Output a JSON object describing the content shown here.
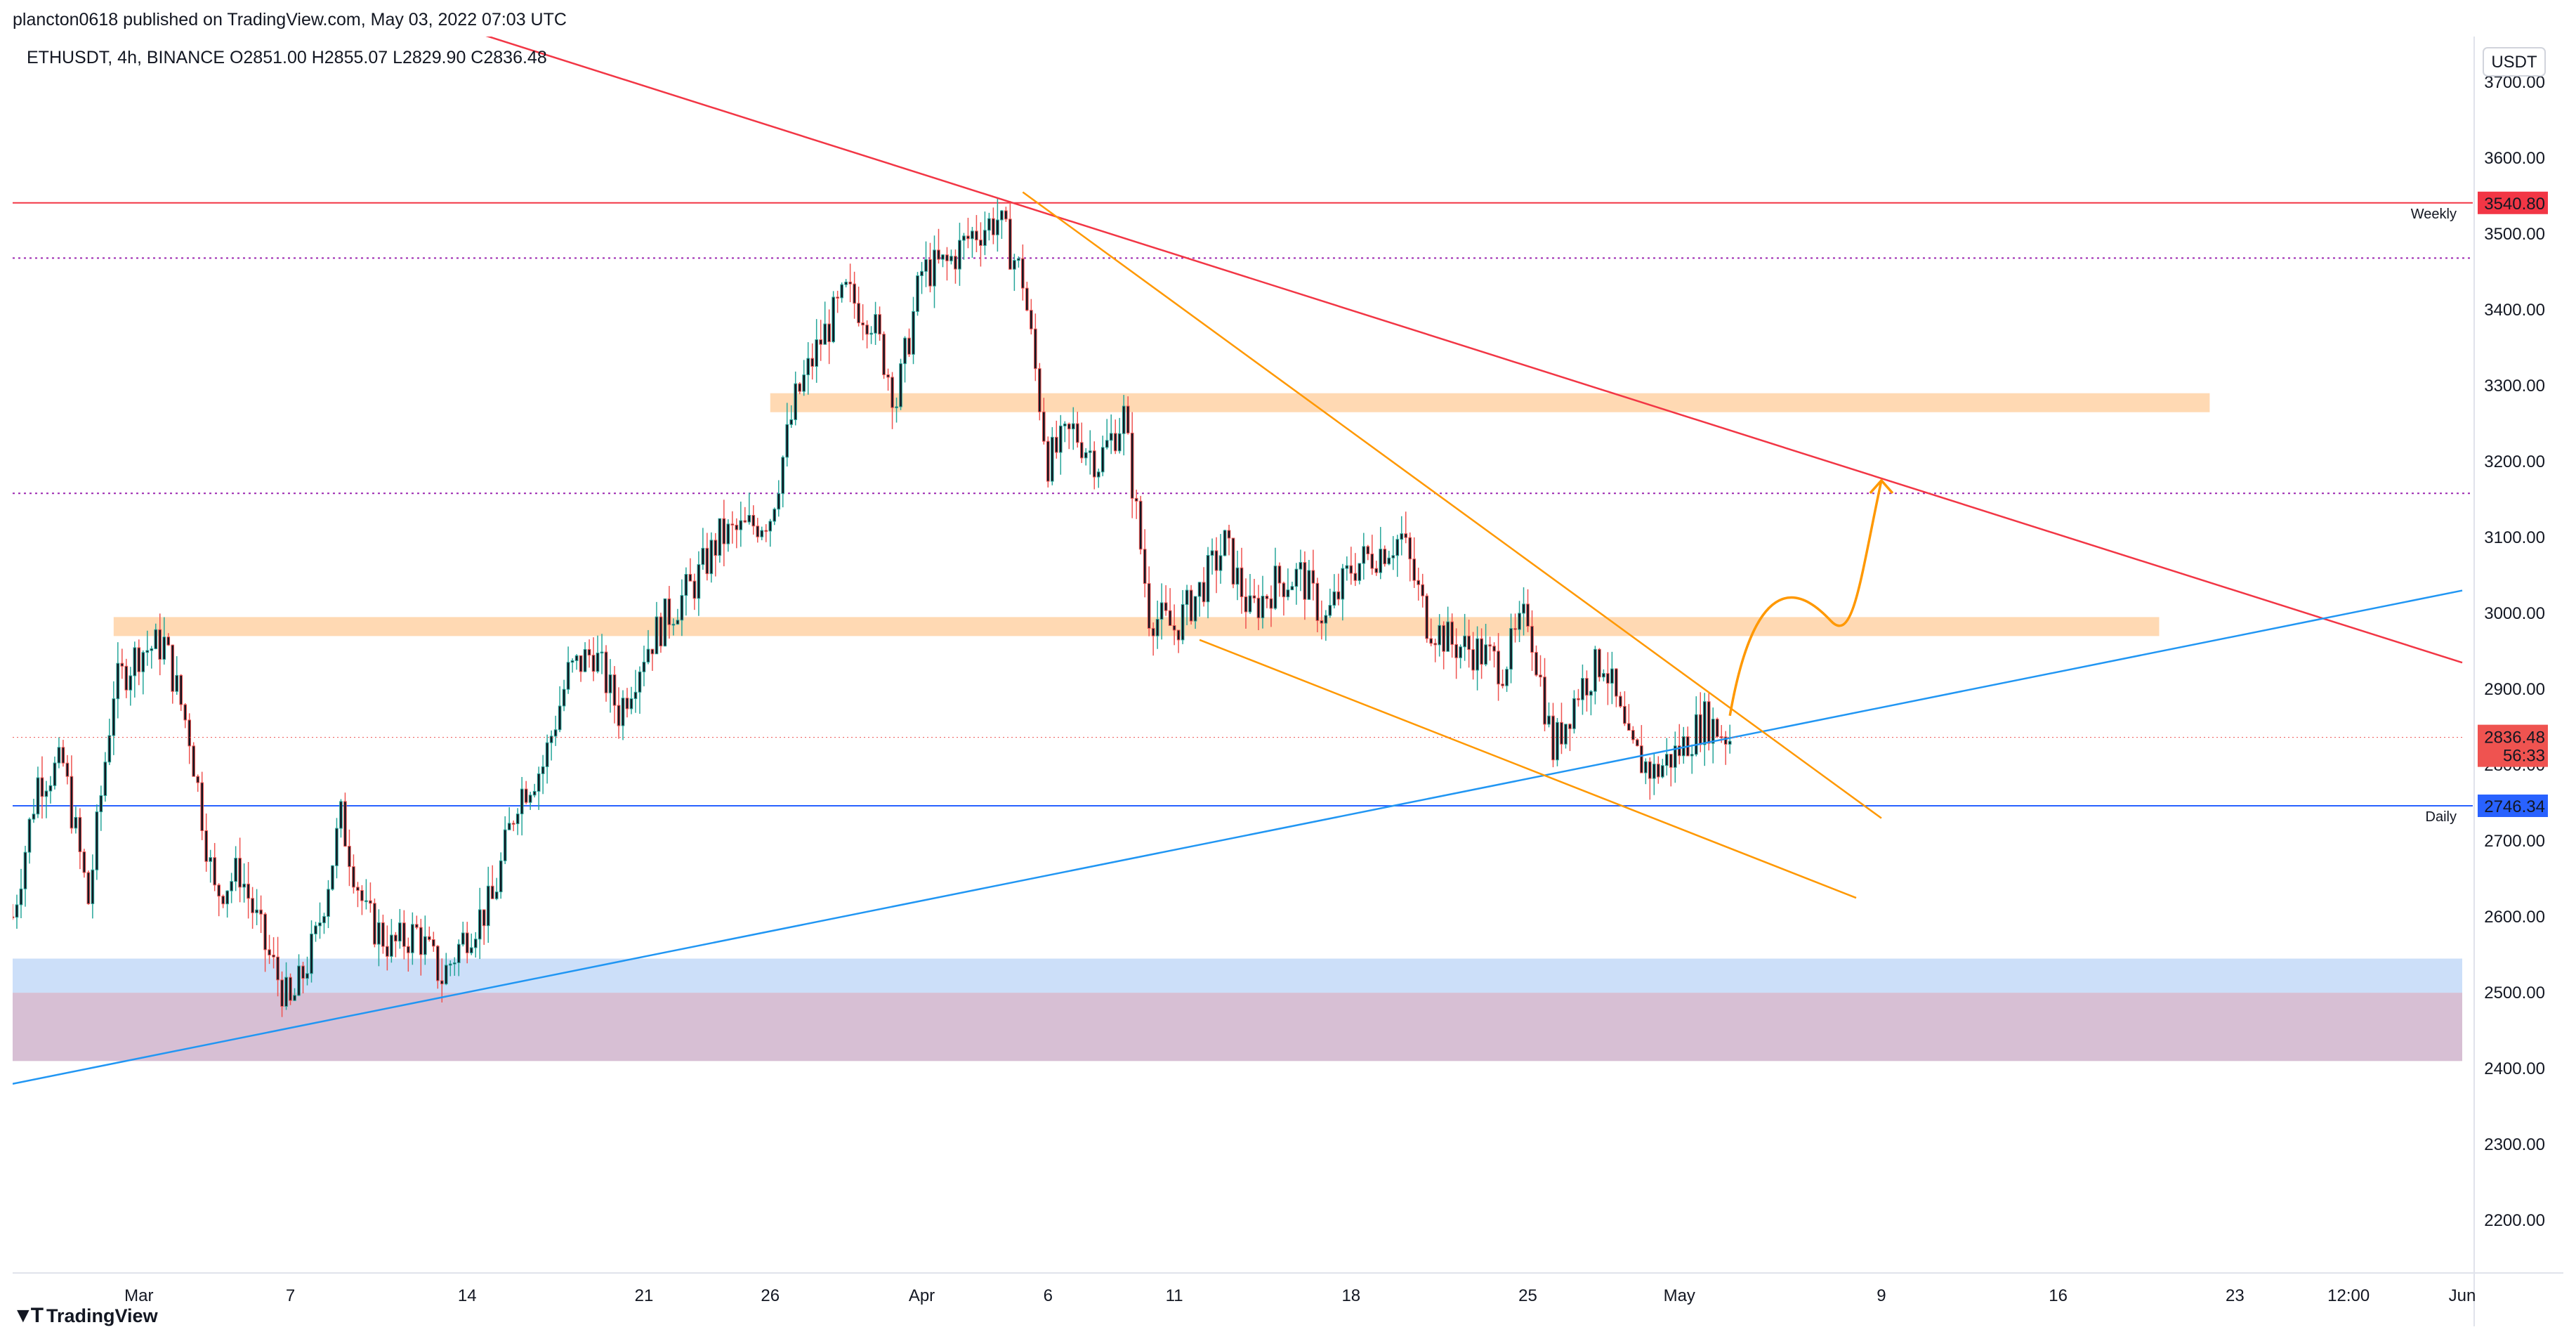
{
  "header": {
    "publish_line": "plancton0618 published on TradingView.com, May 03, 2022 07:03 UTC",
    "legend_line": "ETHUSDT, 4h, BINANCE  O2851.00  H2855.07  L2829.90  C2836.48"
  },
  "footer": {
    "brand": "TradingView",
    "brand_icon": "tradingview-logo-icon"
  },
  "colors": {
    "up": "#26a69a",
    "down": "#ef5350",
    "candle_body": "#131722",
    "weekly": "#f23645",
    "daily": "#2962ff",
    "trendline_red": "#f23645",
    "trendline_blue": "#2196f3",
    "channel": "#ff9800",
    "zone_orange": "#ffcc99",
    "zone_blue": "#bbd4f7",
    "zone_purple": "#c9a9c6"
  },
  "chart_data": {
    "type": "candlestick",
    "symbol": "ETHUSDT",
    "interval": "4h",
    "exchange": "BINANCE",
    "ohlc_last": {
      "open": 2851.0,
      "high": 2855.07,
      "low": 2829.9,
      "close": 2836.48
    },
    "ylim": [
      2140,
      3760
    ],
    "xlim": [
      "2022-02-24",
      "2022-06-01"
    ],
    "currency_label": "USDT",
    "y_ticks": [
      2200,
      2300,
      2400,
      2500,
      2600,
      2700,
      2800,
      2900,
      3000,
      3100,
      3200,
      3300,
      3400,
      3500,
      3600,
      3700
    ],
    "y_tick_labels": [
      "2200.00",
      "2300.00",
      "2400.00",
      "2500.00",
      "2600.00",
      "2700.00",
      "2800.00",
      "2900.00",
      "3000.00",
      "3100.00",
      "3200.00",
      "3300.00",
      "3400.00",
      "3500.00",
      "3600.00",
      "3700.00"
    ],
    "x_ticks": [
      {
        "date": "2022-03-01",
        "label": "Mar"
      },
      {
        "date": "2022-03-07",
        "label": "7"
      },
      {
        "date": "2022-03-14",
        "label": "14"
      },
      {
        "date": "2022-03-21",
        "label": "21"
      },
      {
        "date": "2022-03-26",
        "label": "26"
      },
      {
        "date": "2022-04-01",
        "label": "Apr"
      },
      {
        "date": "2022-04-06",
        "label": "6"
      },
      {
        "date": "2022-04-11",
        "label": "11"
      },
      {
        "date": "2022-04-18",
        "label": "18"
      },
      {
        "date": "2022-04-25",
        "label": "25"
      },
      {
        "date": "2022-05-01",
        "label": "May"
      },
      {
        "date": "2022-05-09",
        "label": "9"
      },
      {
        "date": "2022-05-16",
        "label": "16"
      },
      {
        "date": "2022-05-23",
        "label": "23"
      },
      {
        "date": "2022-05-27 12:00",
        "label": "12:00"
      },
      {
        "date": "2022-06-01",
        "label": "Jun"
      }
    ],
    "price_path": [
      [
        "2022-02-24",
        2600
      ],
      [
        "2022-02-25",
        2780
      ],
      [
        "2022-02-26",
        2800
      ],
      [
        "2022-02-27",
        2620
      ],
      [
        "2022-02-28",
        2900
      ],
      [
        "2022-03-01",
        2950
      ],
      [
        "2022-03-02",
        2960
      ],
      [
        "2022-03-03",
        2840
      ],
      [
        "2022-03-04",
        2630
      ],
      [
        "2022-03-05",
        2660
      ],
      [
        "2022-03-06",
        2560
      ],
      [
        "2022-03-07",
        2480
      ],
      [
        "2022-03-08",
        2570
      ],
      [
        "2022-03-09",
        2730
      ],
      [
        "2022-03-10",
        2600
      ],
      [
        "2022-03-11",
        2560
      ],
      [
        "2022-03-12",
        2580
      ],
      [
        "2022-03-13",
        2520
      ],
      [
        "2022-03-14",
        2580
      ],
      [
        "2022-03-15",
        2620
      ],
      [
        "2022-03-16",
        2760
      ],
      [
        "2022-03-17",
        2800
      ],
      [
        "2022-03-18",
        2920
      ],
      [
        "2022-03-19",
        2950
      ],
      [
        "2022-03-20",
        2870
      ],
      [
        "2022-03-21",
        2950
      ],
      [
        "2022-03-22",
        3000
      ],
      [
        "2022-03-23",
        3040
      ],
      [
        "2022-03-24",
        3100
      ],
      [
        "2022-03-25",
        3110
      ],
      [
        "2022-03-26",
        3130
      ],
      [
        "2022-03-27",
        3280
      ],
      [
        "2022-03-28",
        3360
      ],
      [
        "2022-03-29",
        3420
      ],
      [
        "2022-03-30",
        3390
      ],
      [
        "2022-03-31",
        3280
      ],
      [
        "2022-04-01",
        3450
      ],
      [
        "2022-04-02",
        3460
      ],
      [
        "2022-04-03",
        3500
      ],
      [
        "2022-04-04",
        3520
      ],
      [
        "2022-04-05",
        3440
      ],
      [
        "2022-04-06",
        3200
      ],
      [
        "2022-04-07",
        3240
      ],
      [
        "2022-04-08",
        3200
      ],
      [
        "2022-04-09",
        3260
      ],
      [
        "2022-04-10",
        3000
      ],
      [
        "2022-04-11",
        2980
      ],
      [
        "2022-04-12",
        3030
      ],
      [
        "2022-04-13",
        3090
      ],
      [
        "2022-04-14",
        3000
      ],
      [
        "2022-04-15",
        3040
      ],
      [
        "2022-04-16",
        3050
      ],
      [
        "2022-04-17",
        2990
      ],
      [
        "2022-04-18",
        3060
      ],
      [
        "2022-04-19",
        3080
      ],
      [
        "2022-04-20",
        3100
      ],
      [
        "2022-04-21",
        2990
      ],
      [
        "2022-04-22",
        2960
      ],
      [
        "2022-04-23",
        2950
      ],
      [
        "2022-04-24",
        2930
      ],
      [
        "2022-04-25",
        3000
      ],
      [
        "2022-04-26",
        2820
      ],
      [
        "2022-04-27",
        2900
      ],
      [
        "2022-04-28",
        2940
      ],
      [
        "2022-04-29",
        2820
      ],
      [
        "2022-04-30",
        2790
      ],
      [
        "2022-05-01",
        2820
      ],
      [
        "2022-05-02",
        2860
      ],
      [
        "2022-05-03",
        2836
      ]
    ],
    "horizontal_levels": [
      {
        "value": 3540.8,
        "label": "3540.80",
        "name": "Weekly",
        "color": "#f23645",
        "style": "solid"
      },
      {
        "value": 2746.34,
        "label": "2746.34",
        "name": "Daily",
        "color": "#2962ff",
        "style": "solid"
      },
      {
        "value": 3468,
        "color": "#9c27b0",
        "style": "dotted"
      },
      {
        "value": 3158,
        "color": "#9c27b0",
        "style": "dotted"
      }
    ],
    "current_price": {
      "value": 2836.48,
      "label": "2836.48",
      "countdown": "56:33"
    },
    "zones": [
      {
        "from": "2022-03-26",
        "to": "2022-05-22",
        "low": 3265,
        "high": 3290,
        "color": "#ffcc99"
      },
      {
        "from": "2022-02-28",
        "to": "2022-05-20",
        "low": 2970,
        "high": 2995,
        "color": "#ffcc99"
      },
      {
        "from": "2022-02-24",
        "to": "2022-06-01",
        "low": 2500,
        "high": 2545,
        "color": "#bbd4f7"
      },
      {
        "from": "2022-02-24",
        "to": "2022-06-01",
        "low": 2410,
        "high": 2500,
        "color": "#c9a9c6"
      }
    ],
    "trendlines": [
      {
        "x1": "2022-03-12",
        "y1": 3790,
        "x2": "2022-06-01",
        "y2": 2935,
        "color": "#f23645"
      },
      {
        "x1": "2022-02-24",
        "y1": 2380,
        "x2": "2022-06-01",
        "y2": 3030,
        "color": "#2196f3"
      },
      {
        "x1": "2022-04-05",
        "y1": 3555,
        "x2": "2022-05-09",
        "y2": 2730,
        "color": "#ff9800"
      },
      {
        "x1": "2022-04-12",
        "y1": 2965,
        "x2": "2022-05-08",
        "y2": 2625,
        "color": "#ff9800"
      }
    ],
    "projection_arrow": {
      "points": [
        [
          "2022-05-03",
          2865
        ],
        [
          "2022-05-05",
          3040
        ],
        [
          "2022-05-07",
          2990
        ],
        [
          "2022-05-09",
          3175
        ]
      ],
      "color": "#ff9800"
    },
    "level_name_labels": [
      "Weekly",
      "Daily"
    ],
    "grid": false
  }
}
